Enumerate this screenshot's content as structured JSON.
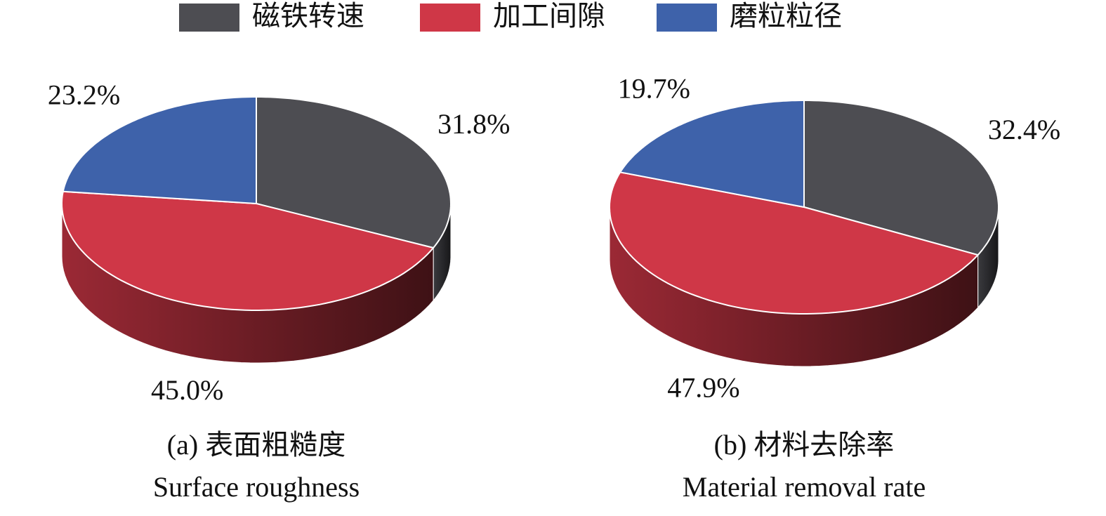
{
  "chart_data": [
    {
      "type": "pie",
      "title": "(a) 表面粗糙度",
      "subtitle": "Surface roughness",
      "categories": [
        "磁铁转速",
        "加工间隙",
        "磨粒粒径"
      ],
      "values": [
        31.8,
        45.0,
        23.2
      ],
      "value_labels": [
        "31.8%",
        "45.0%",
        "23.2%"
      ],
      "colors": [
        "#4d4d52",
        "#cf3747",
        "#3e62aa"
      ]
    },
    {
      "type": "pie",
      "title": "(b) 材料去除率",
      "subtitle": "Material removal rate",
      "categories": [
        "磁铁转速",
        "加工间隙",
        "磨粒粒径"
      ],
      "values": [
        32.4,
        47.9,
        19.7
      ],
      "value_labels": [
        "32.4%",
        "47.9%",
        "19.7%"
      ],
      "colors": [
        "#4d4d52",
        "#cf3747",
        "#3e62aa"
      ]
    }
  ]
}
